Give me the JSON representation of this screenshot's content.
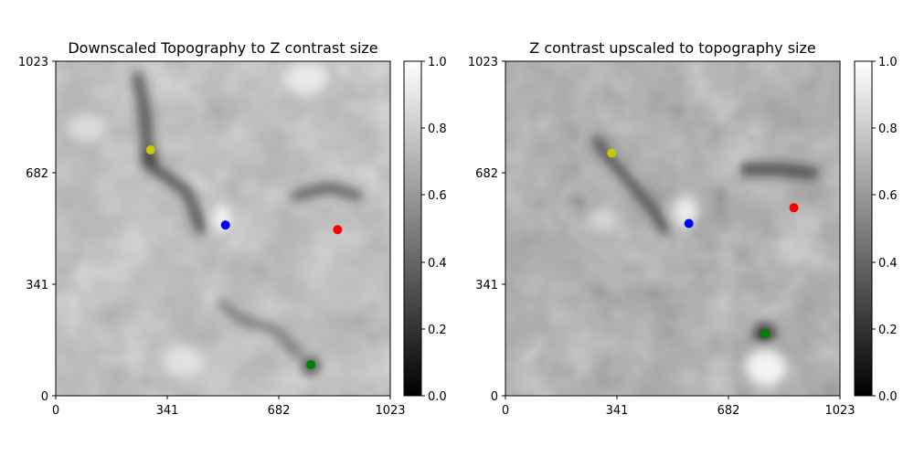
{
  "chart_data": [
    {
      "type": "heatmap",
      "title": "Downscaled Topography to Z contrast size",
      "xlim": [
        0,
        1023
      ],
      "ylim": [
        0,
        1023
      ],
      "x_ticks": [
        0,
        341,
        682,
        1023
      ],
      "y_ticks": [
        0,
        341,
        682,
        1023
      ],
      "colormap": "gray",
      "colorbar": {
        "range": [
          0,
          1
        ],
        "ticks": [
          "0.0",
          "0.2",
          "0.4",
          "0.6",
          "0.8",
          "1.0"
        ]
      },
      "points": [
        {
          "color": "#c8c800",
          "x": 290,
          "y": 752
        },
        {
          "color": "#0000ff",
          "x": 519,
          "y": 522
        },
        {
          "color": "#ff0000",
          "x": 862,
          "y": 508
        },
        {
          "color": "#008000",
          "x": 780,
          "y": 95
        }
      ]
    },
    {
      "type": "heatmap",
      "title": "Z contrast upscaled to topography size",
      "xlim": [
        0,
        1023
      ],
      "ylim": [
        0,
        1023
      ],
      "x_ticks": [
        0,
        341,
        682,
        1023
      ],
      "y_ticks": [
        0,
        341,
        682,
        1023
      ],
      "colormap": "gray",
      "colorbar": {
        "range": [
          0,
          1
        ],
        "ticks": [
          "0.0",
          "0.2",
          "0.4",
          "0.6",
          "0.8",
          "1.0"
        ]
      },
      "points": [
        {
          "color": "#c8c800",
          "x": 325,
          "y": 742
        },
        {
          "color": "#0000ff",
          "x": 561,
          "y": 527
        },
        {
          "color": "#ff0000",
          "x": 882,
          "y": 575
        },
        {
          "color": "#008000",
          "x": 795,
          "y": 190
        }
      ]
    }
  ]
}
